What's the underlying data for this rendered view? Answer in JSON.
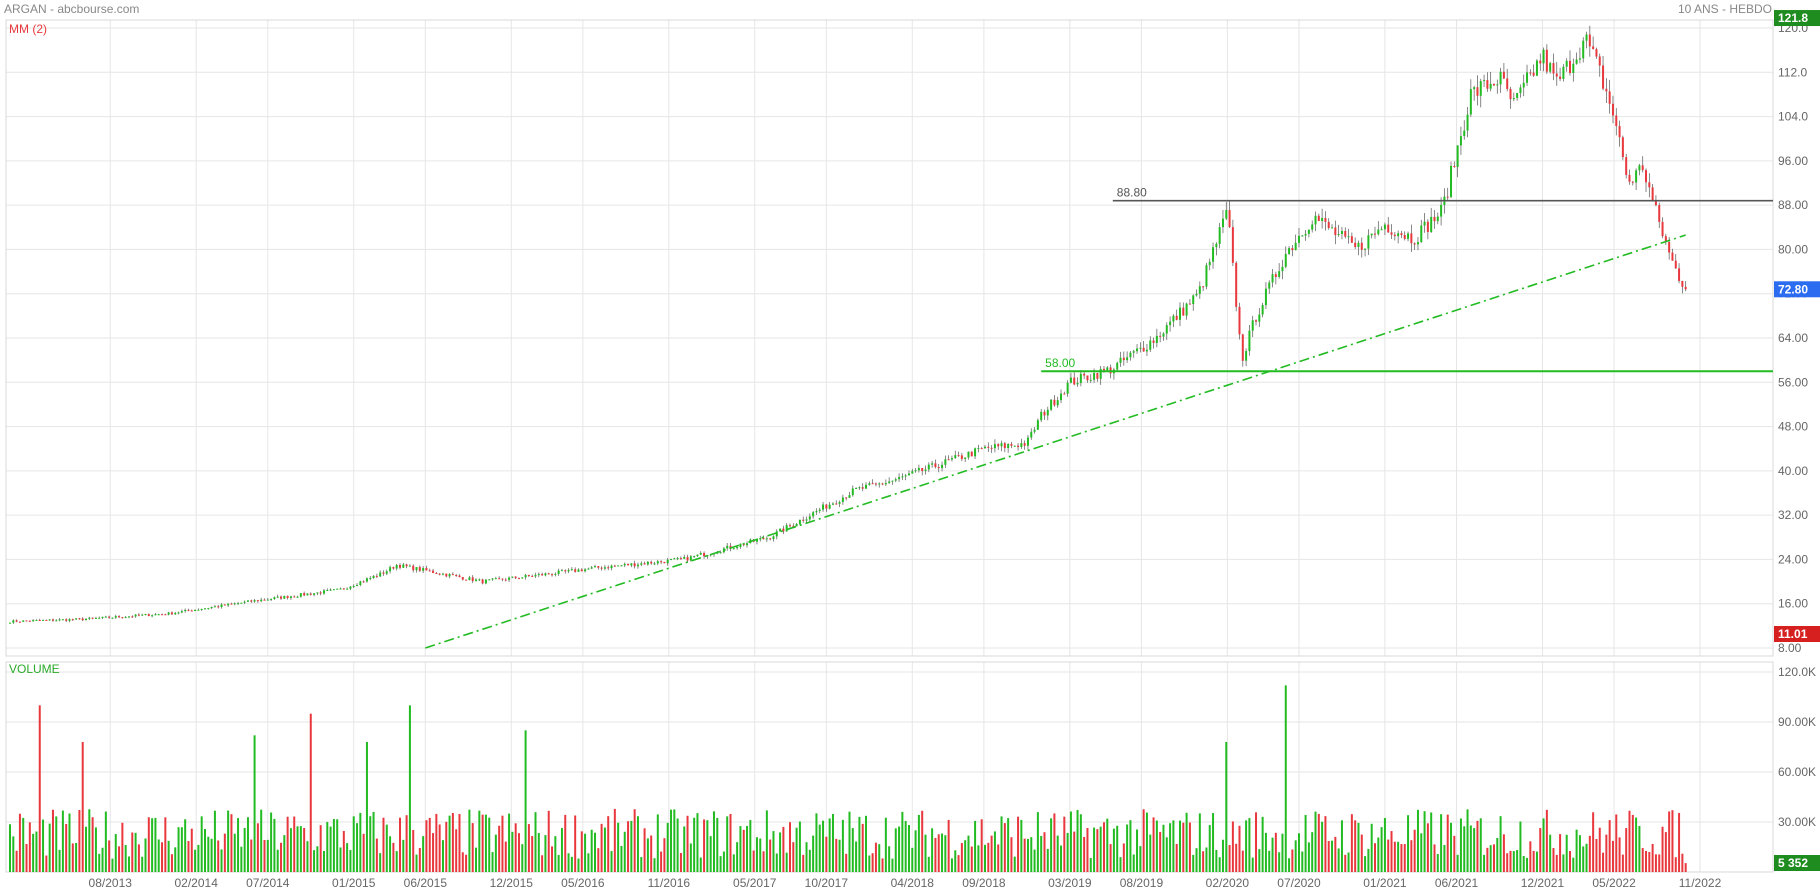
{
  "header": {
    "title": "ARGAN - abcbourse.com",
    "period": "10 ANS - HEBDO",
    "indicator": "MM (2)",
    "volume_label": "VOLUME"
  },
  "badges": {
    "max": {
      "label": "121.8",
      "value": 121.8,
      "color": "#1e8c1e"
    },
    "last": {
      "label": "72.80",
      "value": 72.8,
      "color": "#2b6cf0"
    },
    "min": {
      "label": "11.01",
      "value": 11.01,
      "color": "#d61f1f"
    },
    "volume_last": {
      "label": "5 352",
      "value": 5352,
      "color": "#1e8c1e"
    }
  },
  "levels": [
    {
      "label": "88.80",
      "value": 88.8,
      "start": "2019-06",
      "color": "#555555"
    },
    {
      "label": "58.00",
      "value": 58.0,
      "start": "2019-01",
      "color": "#22bb22"
    }
  ],
  "trendline": {
    "from": {
      "date": "2015-06",
      "value": 8.0
    },
    "to": {
      "date": "2022-10",
      "value": 82.6
    },
    "color": "#22bb22"
  },
  "colors": {
    "up": "#22bb22",
    "down": "#e8383d",
    "grid": "#e6e6e6"
  },
  "chart_data": [
    {
      "type": "candlestick",
      "title": "ARGAN",
      "x_ticks": [
        "08/2013",
        "02/2014",
        "07/2014",
        "01/2015",
        "06/2015",
        "12/2015",
        "05/2016",
        "11/2016",
        "05/2017",
        "10/2017",
        "04/2018",
        "09/2018",
        "03/2019",
        "08/2019",
        "02/2020",
        "07/2020",
        "01/2021",
        "06/2021",
        "12/2021",
        "05/2022",
        "11/2022"
      ],
      "y_ticks": [
        "8.00",
        "16.00",
        "24.00",
        "32.00",
        "40.00",
        "48.00",
        "56.00",
        "64.00",
        "72.00",
        "80.00",
        "88.00",
        "96.00",
        "104.0",
        "112.0",
        "120.0"
      ],
      "ylim": [
        8,
        120
      ],
      "x_range": [
        "2013-01",
        "2022-11"
      ],
      "grid": true,
      "close_path": [
        [
          "2013-01",
          12.8
        ],
        [
          "2013-06",
          13.2
        ],
        [
          "2013-12",
          14.2
        ],
        [
          "2014-06",
          16.5
        ],
        [
          "2014-12",
          18.5
        ],
        [
          "2015-03",
          21.5
        ],
        [
          "2015-04",
          23.0
        ],
        [
          "2015-10",
          20.0
        ],
        [
          "2016-03",
          21.5
        ],
        [
          "2016-06",
          22.5
        ],
        [
          "2016-12",
          24.0
        ],
        [
          "2017-06",
          28.0
        ],
        [
          "2017-12",
          36.5
        ],
        [
          "2018-03",
          38.5
        ],
        [
          "2018-09",
          44.0
        ],
        [
          "2018-12",
          45.0
        ],
        [
          "2019-01",
          50.0
        ],
        [
          "2019-03",
          56.0
        ],
        [
          "2019-06",
          58.5
        ],
        [
          "2019-09",
          64.0
        ],
        [
          "2019-12",
          72.0
        ],
        [
          "2020-02",
          87.0
        ],
        [
          "2020-03",
          60.0
        ],
        [
          "2020-04",
          68.0
        ],
        [
          "2020-06",
          79.0
        ],
        [
          "2020-08",
          86.0
        ],
        [
          "2020-11",
          80.0
        ],
        [
          "2021-01",
          84.5
        ],
        [
          "2021-03",
          82.0
        ],
        [
          "2021-05",
          87.0
        ],
        [
          "2021-07",
          108.0
        ],
        [
          "2021-09",
          111.0
        ],
        [
          "2021-10",
          106.0
        ],
        [
          "2021-12",
          115.0
        ],
        [
          "2022-01",
          110.0
        ],
        [
          "2022-03",
          118.0
        ],
        [
          "2022-04",
          112.0
        ],
        [
          "2022-05",
          104.0
        ],
        [
          "2022-06",
          92.0
        ],
        [
          "2022-07",
          95.0
        ],
        [
          "2022-08",
          86.0
        ],
        [
          "2022-09",
          78.0
        ],
        [
          "2022-10",
          72.8
        ]
      ]
    },
    {
      "type": "bar",
      "title": "VOLUME",
      "y_ticks": [
        "30.00K",
        "60.00K",
        "90.00K",
        "120.0K"
      ],
      "ylim": [
        0,
        120000
      ],
      "spikes": [
        [
          "2013-03",
          100000
        ],
        [
          "2013-06",
          78000
        ],
        [
          "2014-06",
          82000
        ],
        [
          "2014-10",
          95000
        ],
        [
          "2015-02",
          78000
        ],
        [
          "2015-05",
          100000
        ],
        [
          "2016-01",
          85000
        ],
        [
          "2020-02",
          78000
        ],
        [
          "2020-06",
          112000
        ]
      ]
    }
  ]
}
